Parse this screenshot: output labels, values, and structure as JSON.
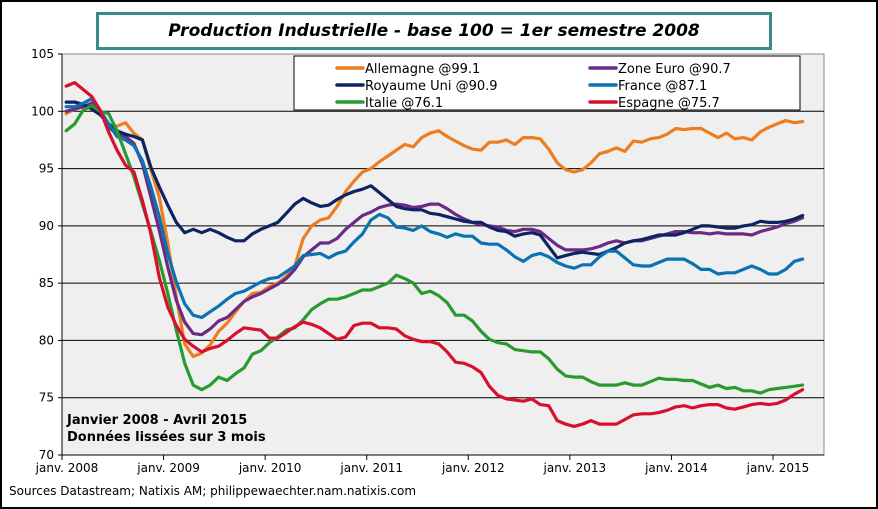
{
  "chart_data": {
    "type": "line",
    "title": "Production Industrielle - base 100 = 1er semestre 2008",
    "xlabel": "",
    "ylabel": "",
    "x_start": "janv. 2008",
    "x_end": "avril 2015",
    "frequency": "monthly",
    "ylim": [
      70,
      105
    ],
    "yticks": [
      70,
      75,
      80,
      85,
      90,
      95,
      100,
      105
    ],
    "xtick_labels": [
      "janv. 2008",
      "janv. 2009",
      "janv. 2010",
      "janv. 2011",
      "janv. 2012",
      "janv. 2013",
      "janv. 2014",
      "janv. 2015"
    ],
    "grid": "horizontal",
    "legend_position": "top-right",
    "annotation": [
      "Janvier 2008 - Avril 2015",
      "Données lissées  sur 3 mois"
    ],
    "source": "Sources Datastream; Natixis AM; philippewaechter.nam.natixis.com",
    "series": [
      {
        "name": "Allemagne @99.1",
        "color": "#ed7d1e",
        "values": [
          99.8,
          100.2,
          100.4,
          100.7,
          100.0,
          98.8,
          98.7,
          99.0,
          98.1,
          97.5,
          94.9,
          92.5,
          88.5,
          83.8,
          79.7,
          78.6,
          78.9,
          79.6,
          80.8,
          81.5,
          82.5,
          83.4,
          84.1,
          84.2,
          84.7,
          85.0,
          85.6,
          86.5,
          88.9,
          90.0,
          90.5,
          90.7,
          91.7,
          93.0,
          93.9,
          94.7,
          95.0,
          95.6,
          96.1,
          96.6,
          97.1,
          96.9,
          97.7,
          98.1,
          98.3,
          97.8,
          97.4,
          97.0,
          96.7,
          96.6,
          97.3,
          97.3,
          97.5,
          97.1,
          97.7,
          97.7,
          97.6,
          96.7,
          95.5,
          94.9,
          94.7,
          94.9,
          95.5,
          96.3,
          96.5,
          96.8,
          96.5,
          97.4,
          97.3,
          97.6,
          97.7,
          98.0,
          98.5,
          98.4,
          98.5,
          98.5,
          98.1,
          97.7,
          98.1,
          97.6,
          97.7,
          97.5,
          98.2,
          98.6,
          98.9,
          99.2,
          99.0,
          99.1
        ]
      },
      {
        "name": "Zone Euro @90.7",
        "color": "#6a2a86",
        "values": [
          100.0,
          100.2,
          100.4,
          100.7,
          99.9,
          98.6,
          98.0,
          97.8,
          97.2,
          95.4,
          92.5,
          89.6,
          86.4,
          83.5,
          81.6,
          80.6,
          80.5,
          81.0,
          81.7,
          82.0,
          82.7,
          83.4,
          83.8,
          84.1,
          84.5,
          84.9,
          85.4,
          86.2,
          87.3,
          87.9,
          88.5,
          88.5,
          88.9,
          89.7,
          90.3,
          90.9,
          91.2,
          91.6,
          91.8,
          91.9,
          91.8,
          91.6,
          91.7,
          91.9,
          91.9,
          91.5,
          91.0,
          90.6,
          90.3,
          90.1,
          90.0,
          89.9,
          89.6,
          89.5,
          89.7,
          89.7,
          89.5,
          88.9,
          88.3,
          87.9,
          87.9,
          87.9,
          88.0,
          88.2,
          88.5,
          88.7,
          88.5,
          88.7,
          88.7,
          88.9,
          89.1,
          89.3,
          89.5,
          89.5,
          89.4,
          89.4,
          89.3,
          89.4,
          89.3,
          89.3,
          89.3,
          89.2,
          89.5,
          89.7,
          89.9,
          90.2,
          90.4,
          90.7
        ]
      },
      {
        "name": "Royaume Uni @90.9",
        "color": "#0c2461",
        "values": [
          100.8,
          100.8,
          100.6,
          100.2,
          99.7,
          98.9,
          98.3,
          98.0,
          97.8,
          97.5,
          95.1,
          93.4,
          91.8,
          90.3,
          89.4,
          89.7,
          89.4,
          89.7,
          89.4,
          89.0,
          88.7,
          88.7,
          89.3,
          89.7,
          90.0,
          90.3,
          91.1,
          91.9,
          92.4,
          92.0,
          91.7,
          91.8,
          92.3,
          92.7,
          93.0,
          93.2,
          93.5,
          92.9,
          92.3,
          91.7,
          91.5,
          91.4,
          91.4,
          91.1,
          91.0,
          90.8,
          90.6,
          90.4,
          90.3,
          90.3,
          89.9,
          89.6,
          89.5,
          89.1,
          89.3,
          89.4,
          89.2,
          88.2,
          87.2,
          87.4,
          87.6,
          87.7,
          87.6,
          87.5,
          87.8,
          88.1,
          88.5,
          88.7,
          88.8,
          89.0,
          89.2,
          89.2,
          89.2,
          89.4,
          89.7,
          90.0,
          90.0,
          89.9,
          89.8,
          89.8,
          90.0,
          90.1,
          90.4,
          90.3,
          90.3,
          90.4,
          90.6,
          90.9
        ]
      },
      {
        "name": "France @87.1",
        "color": "#0b72b2",
        "values": [
          100.4,
          100.4,
          100.7,
          101.1,
          100.1,
          98.9,
          97.8,
          97.5,
          97.0,
          95.7,
          93.4,
          90.8,
          87.6,
          85.1,
          83.2,
          82.2,
          82.0,
          82.5,
          83.0,
          83.6,
          84.1,
          84.3,
          84.7,
          85.1,
          85.4,
          85.5,
          86.0,
          86.5,
          87.4,
          87.5,
          87.6,
          87.2,
          87.6,
          87.8,
          88.6,
          89.3,
          90.5,
          91.0,
          90.7,
          89.9,
          89.8,
          89.6,
          90.0,
          89.5,
          89.3,
          89.0,
          89.3,
          89.1,
          89.1,
          88.5,
          88.4,
          88.4,
          87.9,
          87.3,
          86.9,
          87.4,
          87.6,
          87.3,
          86.8,
          86.5,
          86.3,
          86.6,
          86.6,
          87.3,
          87.8,
          87.8,
          87.2,
          86.6,
          86.5,
          86.5,
          86.8,
          87.1,
          87.1,
          87.1,
          86.7,
          86.2,
          86.2,
          85.8,
          85.9,
          85.9,
          86.2,
          86.5,
          86.2,
          85.8,
          85.8,
          86.2,
          86.9,
          87.1
        ]
      },
      {
        "name": "Italie @76.1",
        "color": "#2a9a30",
        "values": [
          98.3,
          98.9,
          100.1,
          100.5,
          100.0,
          99.8,
          98.3,
          96.3,
          94.3,
          91.9,
          89.5,
          87.0,
          84.1,
          80.9,
          78.0,
          76.1,
          75.7,
          76.1,
          76.8,
          76.5,
          77.1,
          77.6,
          78.8,
          79.1,
          79.8,
          80.3,
          80.9,
          81.1,
          81.8,
          82.7,
          83.2,
          83.6,
          83.6,
          83.8,
          84.1,
          84.4,
          84.4,
          84.7,
          85.0,
          85.7,
          85.4,
          85.0,
          84.1,
          84.3,
          83.9,
          83.3,
          82.2,
          82.2,
          81.7,
          80.8,
          80.1,
          79.8,
          79.7,
          79.2,
          79.1,
          79.0,
          79.0,
          78.4,
          77.5,
          76.9,
          76.8,
          76.8,
          76.4,
          76.1,
          76.1,
          76.1,
          76.3,
          76.1,
          76.1,
          76.4,
          76.7,
          76.6,
          76.6,
          76.5,
          76.5,
          76.2,
          75.9,
          76.1,
          75.8,
          75.9,
          75.6,
          75.6,
          75.4,
          75.7,
          75.8,
          75.9,
          76.0,
          76.1
        ]
      },
      {
        "name": "Espagne @75.7",
        "color": "#d7102e",
        "values": [
          102.2,
          102.5,
          101.9,
          101.3,
          100.1,
          98.2,
          96.6,
          95.3,
          94.7,
          92.2,
          89.3,
          85.5,
          82.9,
          81.3,
          80.1,
          79.5,
          79.0,
          79.3,
          79.5,
          80.0,
          80.6,
          81.1,
          81.0,
          80.9,
          80.2,
          80.2,
          80.7,
          81.2,
          81.6,
          81.4,
          81.1,
          80.6,
          80.1,
          80.3,
          81.3,
          81.5,
          81.5,
          81.1,
          81.1,
          81.0,
          80.4,
          80.1,
          79.9,
          79.9,
          79.7,
          79.0,
          78.1,
          78.0,
          77.7,
          77.2,
          76.0,
          75.2,
          74.9,
          74.8,
          74.7,
          74.9,
          74.4,
          74.3,
          73.0,
          72.7,
          72.5,
          72.7,
          73.0,
          72.7,
          72.7,
          72.7,
          73.1,
          73.5,
          73.6,
          73.6,
          73.7,
          73.9,
          74.2,
          74.3,
          74.1,
          74.3,
          74.4,
          74.4,
          74.1,
          74.0,
          74.2,
          74.4,
          74.5,
          74.4,
          74.5,
          74.8,
          75.3,
          75.7
        ]
      }
    ]
  },
  "colors": {
    "title_border": "#3a8a8c",
    "plot_background": "#efefef"
  }
}
